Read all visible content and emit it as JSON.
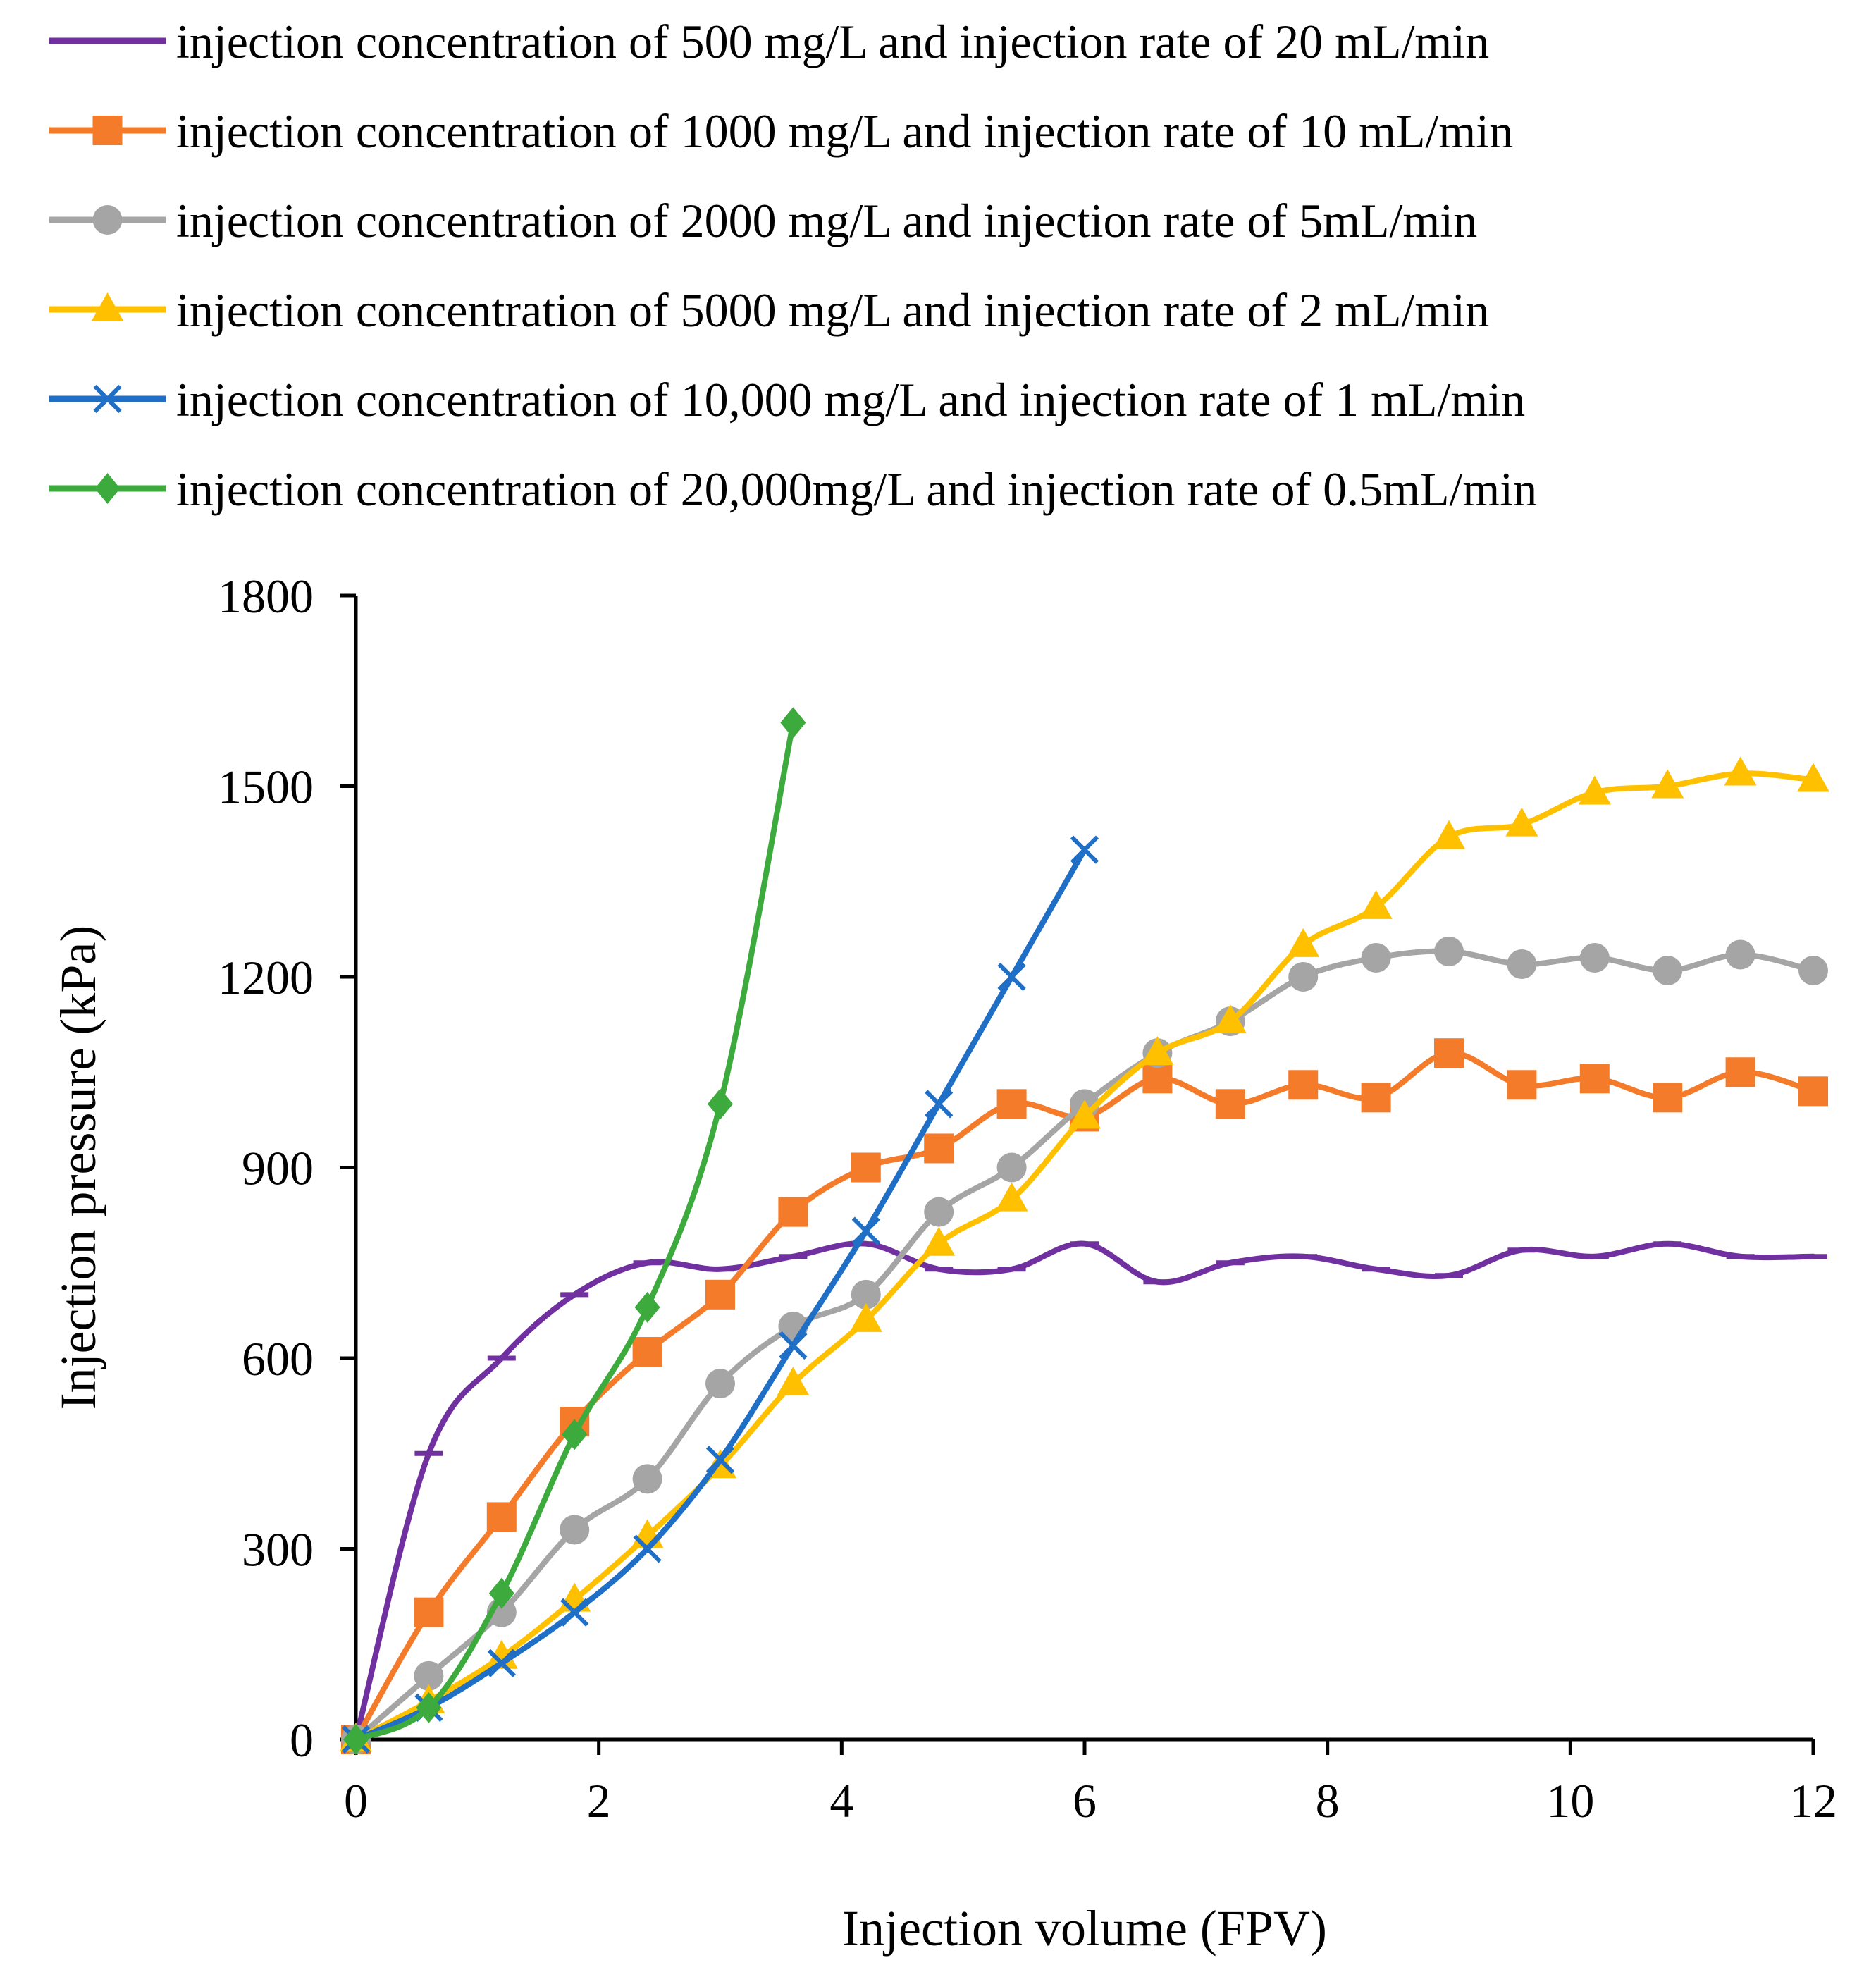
{
  "chart_data": {
    "type": "line",
    "xlabel": "Injection volume (FPV)",
    "ylabel": "Injection pressure (kPa)",
    "xlim": [
      0,
      12
    ],
    "ylim": [
      0,
      1800
    ],
    "xticks": [
      0,
      2,
      4,
      6,
      8,
      10,
      12
    ],
    "yticks": [
      0,
      300,
      600,
      900,
      1200,
      1500,
      1800
    ],
    "grid": false,
    "legend_position": "top",
    "series": [
      {
        "name": "injection concentration of 500 mg/L and injection rate of 20 mL/min",
        "color": "#7030A0",
        "marker": "dash",
        "x": [
          0,
          0.6,
          1.2,
          1.8,
          2.4,
          3.0,
          3.6,
          4.2,
          4.8,
          5.4,
          6.0,
          6.6,
          7.2,
          7.8,
          8.4,
          9.0,
          9.6,
          10.2,
          10.8,
          11.4,
          12.0
        ],
        "y": [
          0,
          450,
          600,
          700,
          750,
          740,
          760,
          780,
          740,
          740,
          780,
          720,
          750,
          760,
          740,
          730,
          770,
          760,
          780,
          760,
          760
        ]
      },
      {
        "name": "injection concentration of 1000 mg/L and injection rate of 10 mL/min",
        "color": "#F47B2A",
        "marker": "square",
        "x": [
          0,
          0.6,
          1.2,
          1.8,
          2.4,
          3.0,
          3.6,
          4.2,
          4.8,
          5.4,
          6.0,
          6.6,
          7.2,
          7.8,
          8.4,
          9.0,
          9.6,
          10.2,
          10.8,
          11.4,
          12.0
        ],
        "y": [
          0,
          200,
          350,
          500,
          610,
          700,
          830,
          900,
          930,
          1000,
          980,
          1040,
          1000,
          1030,
          1010,
          1080,
          1030,
          1040,
          1010,
          1050,
          1020
        ]
      },
      {
        "name": "injection concentration of 2000 mg/L and injection rate of 5mL/min",
        "color": "#A5A5A5",
        "marker": "circle",
        "x": [
          0,
          0.6,
          1.2,
          1.8,
          2.4,
          3.0,
          3.6,
          4.2,
          4.8,
          5.4,
          6.0,
          6.6,
          7.2,
          7.8,
          8.4,
          9.0,
          9.6,
          10.2,
          10.8,
          11.4,
          12.0
        ],
        "y": [
          0,
          100,
          200,
          330,
          410,
          560,
          650,
          700,
          830,
          900,
          1000,
          1080,
          1130,
          1200,
          1230,
          1240,
          1220,
          1230,
          1210,
          1235,
          1210
        ]
      },
      {
        "name": "injection concentration of 5000 mg/L and injection rate of 2 mL/min",
        "color": "#FFC000",
        "marker": "triangle",
        "x": [
          0,
          0.6,
          1.2,
          1.8,
          2.4,
          3.0,
          3.6,
          4.2,
          4.8,
          5.4,
          6.0,
          6.6,
          7.2,
          7.8,
          8.4,
          9.0,
          9.6,
          10.2,
          10.8,
          11.4,
          12.0
        ],
        "y": [
          0,
          60,
          130,
          220,
          320,
          430,
          560,
          660,
          780,
          850,
          980,
          1080,
          1130,
          1250,
          1310,
          1420,
          1440,
          1490,
          1500,
          1520,
          1510
        ]
      },
      {
        "name": "injection concentration of 10,000 mg/L and injection rate of 1 mL/min",
        "color": "#1F6FC6",
        "marker": "x",
        "x": [
          0,
          0.6,
          1.2,
          1.8,
          2.4,
          3.0,
          3.6,
          4.2,
          4.8,
          5.4,
          6.0
        ],
        "y": [
          0,
          50,
          120,
          200,
          300,
          440,
          620,
          800,
          1000,
          1200,
          1400
        ]
      },
      {
        "name": "injection concentration of 20,000mg/L and injection rate of 0.5mL/min",
        "color": "#3CAA3C",
        "marker": "diamond",
        "x": [
          0,
          0.6,
          1.2,
          1.8,
          2.4,
          3.0,
          3.6
        ],
        "y": [
          0,
          50,
          230,
          480,
          680,
          1000,
          1600
        ]
      }
    ]
  }
}
